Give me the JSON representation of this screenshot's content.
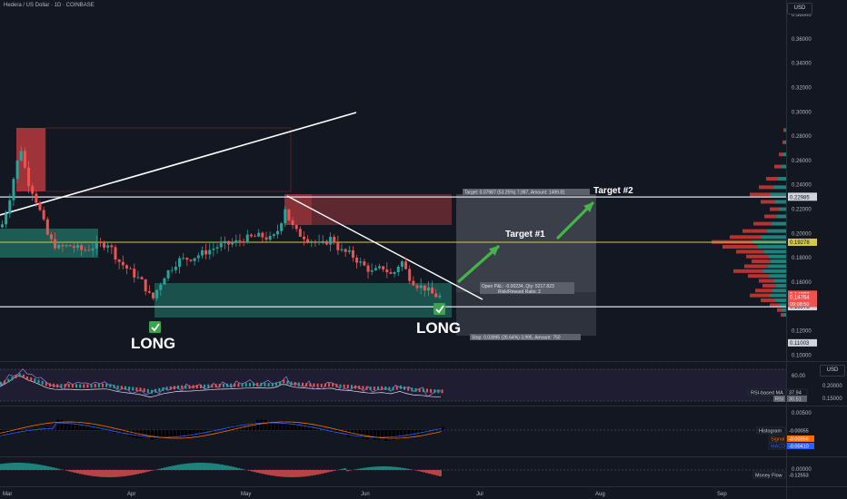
{
  "title": "Hedera / US Dollar · 1D · COINBASE",
  "currency": "USD",
  "chart_data": {
    "type": "candlestick",
    "x_ticks": [
      "Mar",
      "Apr",
      "May",
      "Jun",
      "Jul",
      "Aug",
      "Sep"
    ],
    "price_ticks": [
      "0.38000",
      "0.36000",
      "0.34000",
      "0.32000",
      "0.30000",
      "0.28000",
      "0.26000",
      "0.24000",
      "0.22000",
      "0.20000",
      "0.18000",
      "0.16000",
      "0.14000",
      "0.12000",
      "0.10000"
    ],
    "ylim": [
      0.095,
      0.392
    ],
    "price_tags": [
      {
        "value": 0.23053,
        "text": "0.23053"
      },
      {
        "value": 0.22985,
        "text": "0.22985"
      },
      {
        "value": 0.19278,
        "text": "0.19278"
      },
      {
        "value": 0.14998,
        "text": "0.14998"
      },
      {
        "value": 0.14764,
        "text": "0.14764"
      },
      {
        "value": 0.13973,
        "text": "0.13973"
      },
      {
        "value": 0.11003,
        "text": "0.11003"
      }
    ],
    "countdown": "09:08:50",
    "levels": [
      0.23,
      0.1928,
      0.1397
    ],
    "annotations": {
      "target1": "Target #1",
      "target2": "Target #2",
      "long_left": "LONG",
      "long_right": "LONG",
      "target_info": "Target: 0.07987 (53.25%) 7,987, Amount: 1499.81",
      "open_pl": "Open P&L: -0.00234, Qty: 5217.823",
      "rr": "Risk/Reward Ratio: 2",
      "stop_info": "Stop: 0.03995 (26.64%) 3,995, Amount: 750"
    },
    "indicators": {
      "rsi": {
        "ticks": [
          "60.00"
        ],
        "rsi_ma_label": "RSI-based MA",
        "rsi_ma_value": "37.94",
        "rsi_label": "RSI",
        "rsi_value": "30.51",
        "price_ticks": [
          "0.20000",
          "0.15000"
        ]
      },
      "macd": {
        "ticks": [
          "0.00500",
          "0.00000"
        ],
        "histogram_label": "Histogram",
        "histogram_value": "-0.00055",
        "signal_label": "Signal",
        "signal_value": "-0.00356",
        "macd_label": "MACD",
        "macd_value": "-0.00410"
      },
      "money_flow": {
        "ticks": [
          "0.00000"
        ],
        "label": "Money Flow",
        "value": "-0.12553"
      }
    }
  }
}
